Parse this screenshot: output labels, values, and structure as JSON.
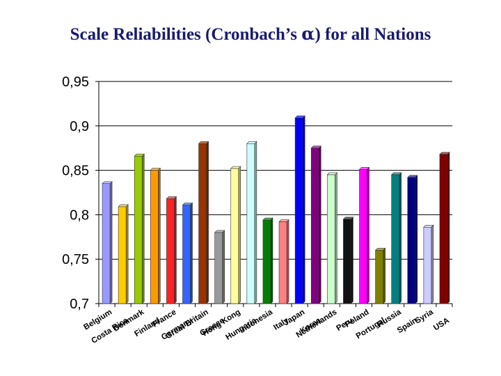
{
  "title": {
    "prefix": "Scale Reliabilities (Cronbach’s ",
    "symbol": "α",
    "suffix": ") for all Nations"
  },
  "chart_data": {
    "type": "bar",
    "title": "Scale Reliabilities (Cronbach’s α) for all Nations",
    "xlabel": "",
    "ylabel": "",
    "ylim": [
      0.7,
      0.95
    ],
    "yticks": [
      0.7,
      0.75,
      0.8,
      0.85,
      0.9,
      0.95
    ],
    "ytick_labels": [
      "0,7",
      "0,75",
      "0,8",
      "0,85",
      "0,9",
      "0,95"
    ],
    "grid": "horizontal major gridlines",
    "categories": [
      "Belgium",
      "Costa Rica",
      "Denmark",
      "Finland",
      "France",
      "Germany",
      "Great Britain",
      "Greece",
      "Hong Kong",
      "Hungaria",
      "Indonesia",
      "Italy",
      "Japan",
      "Korea",
      "Netherlands",
      "Peru",
      "Poland",
      "Portugal",
      "Russia",
      "Spain",
      "Syria",
      "USA"
    ],
    "values": [
      0.835,
      0.809,
      0.866,
      0.85,
      0.818,
      0.811,
      0.88,
      0.78,
      0.852,
      0.88,
      0.794,
      0.792,
      0.909,
      0.875,
      0.845,
      0.795,
      0.851,
      0.76,
      0.845,
      0.842,
      0.786,
      0.868
    ],
    "colors": [
      "#9999ff",
      "#ffcc00",
      "#99cc00",
      "#ff9900",
      "#ff2222",
      "#3366ff",
      "#993300",
      "#999999",
      "#ffff99",
      "#ccffff",
      "#008000",
      "#ff8080",
      "#0000ff",
      "#800080",
      "#ccffcc",
      "#111111",
      "#ff00ff",
      "#808000",
      "#008080",
      "#000080",
      "#ccccff",
      "#800000"
    ]
  }
}
